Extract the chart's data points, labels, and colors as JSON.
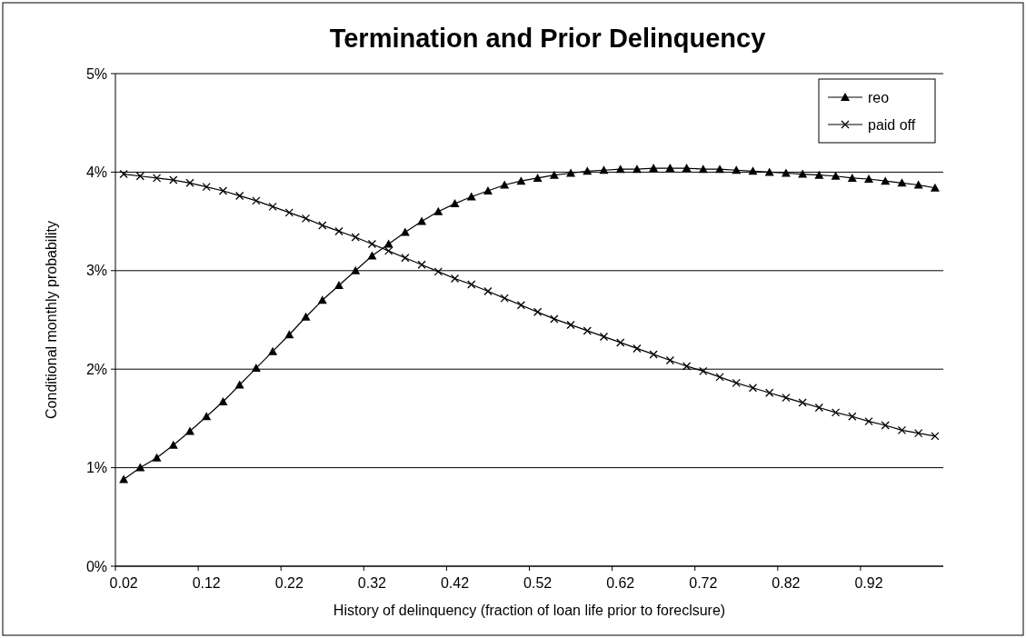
{
  "chart_data": {
    "type": "line",
    "title": "Termination and Prior Delinquency",
    "xlabel": "History of delinquency (fraction of loan life prior to foreclsure)",
    "ylabel": "Conditional monthly probability",
    "categories": [
      "0.02",
      null,
      null,
      null,
      null,
      "0.12",
      null,
      null,
      null,
      null,
      "0.22",
      null,
      null,
      null,
      null,
      "0.32",
      null,
      null,
      null,
      null,
      "0.42",
      null,
      null,
      null,
      null,
      "0.52",
      null,
      null,
      null,
      null,
      "0.62",
      null,
      null,
      null,
      null,
      "0.72",
      null,
      null,
      null,
      null,
      "0.82",
      null,
      null,
      null,
      null,
      "0.92",
      null,
      null,
      null,
      null
    ],
    "series": [
      {
        "name": "reo",
        "color": "#000000",
        "marker": "triangle",
        "values": [
          0.88,
          1.0,
          1.1,
          1.23,
          1.37,
          1.52,
          1.67,
          1.84,
          2.01,
          2.18,
          2.35,
          2.53,
          2.7,
          2.85,
          3.0,
          3.15,
          3.27,
          3.39,
          3.5,
          3.6,
          3.68,
          3.75,
          3.81,
          3.87,
          3.91,
          3.94,
          3.97,
          3.99,
          4.01,
          4.02,
          4.03,
          4.03,
          4.04,
          4.04,
          4.04,
          4.03,
          4.03,
          4.02,
          4.01,
          4.0,
          3.99,
          3.98,
          3.97,
          3.96,
          3.94,
          3.93,
          3.91,
          3.89,
          3.87,
          3.84
        ]
      },
      {
        "name": "paid off",
        "color": "#000000",
        "marker": "cross",
        "values": [
          3.98,
          3.96,
          3.94,
          3.92,
          3.89,
          3.85,
          3.81,
          3.76,
          3.71,
          3.65,
          3.59,
          3.53,
          3.46,
          3.4,
          3.34,
          3.27,
          3.2,
          3.13,
          3.06,
          2.99,
          2.92,
          2.86,
          2.79,
          2.72,
          2.65,
          2.58,
          2.51,
          2.45,
          2.39,
          2.33,
          2.27,
          2.21,
          2.15,
          2.09,
          2.03,
          1.98,
          1.92,
          1.86,
          1.81,
          1.76,
          1.71,
          1.66,
          1.61,
          1.56,
          1.52,
          1.47,
          1.43,
          1.38,
          1.35,
          1.32
        ]
      }
    ],
    "ylim": [
      0,
      5
    ],
    "yticks": [
      {
        "value": 0,
        "label": "0%"
      },
      {
        "value": 1,
        "label": "1%"
      },
      {
        "value": 2,
        "label": "2%"
      },
      {
        "value": 3,
        "label": "3%"
      },
      {
        "value": 4,
        "label": "4%"
      },
      {
        "value": 5,
        "label": "5%"
      }
    ],
    "grid": "y",
    "legend": "top right"
  }
}
